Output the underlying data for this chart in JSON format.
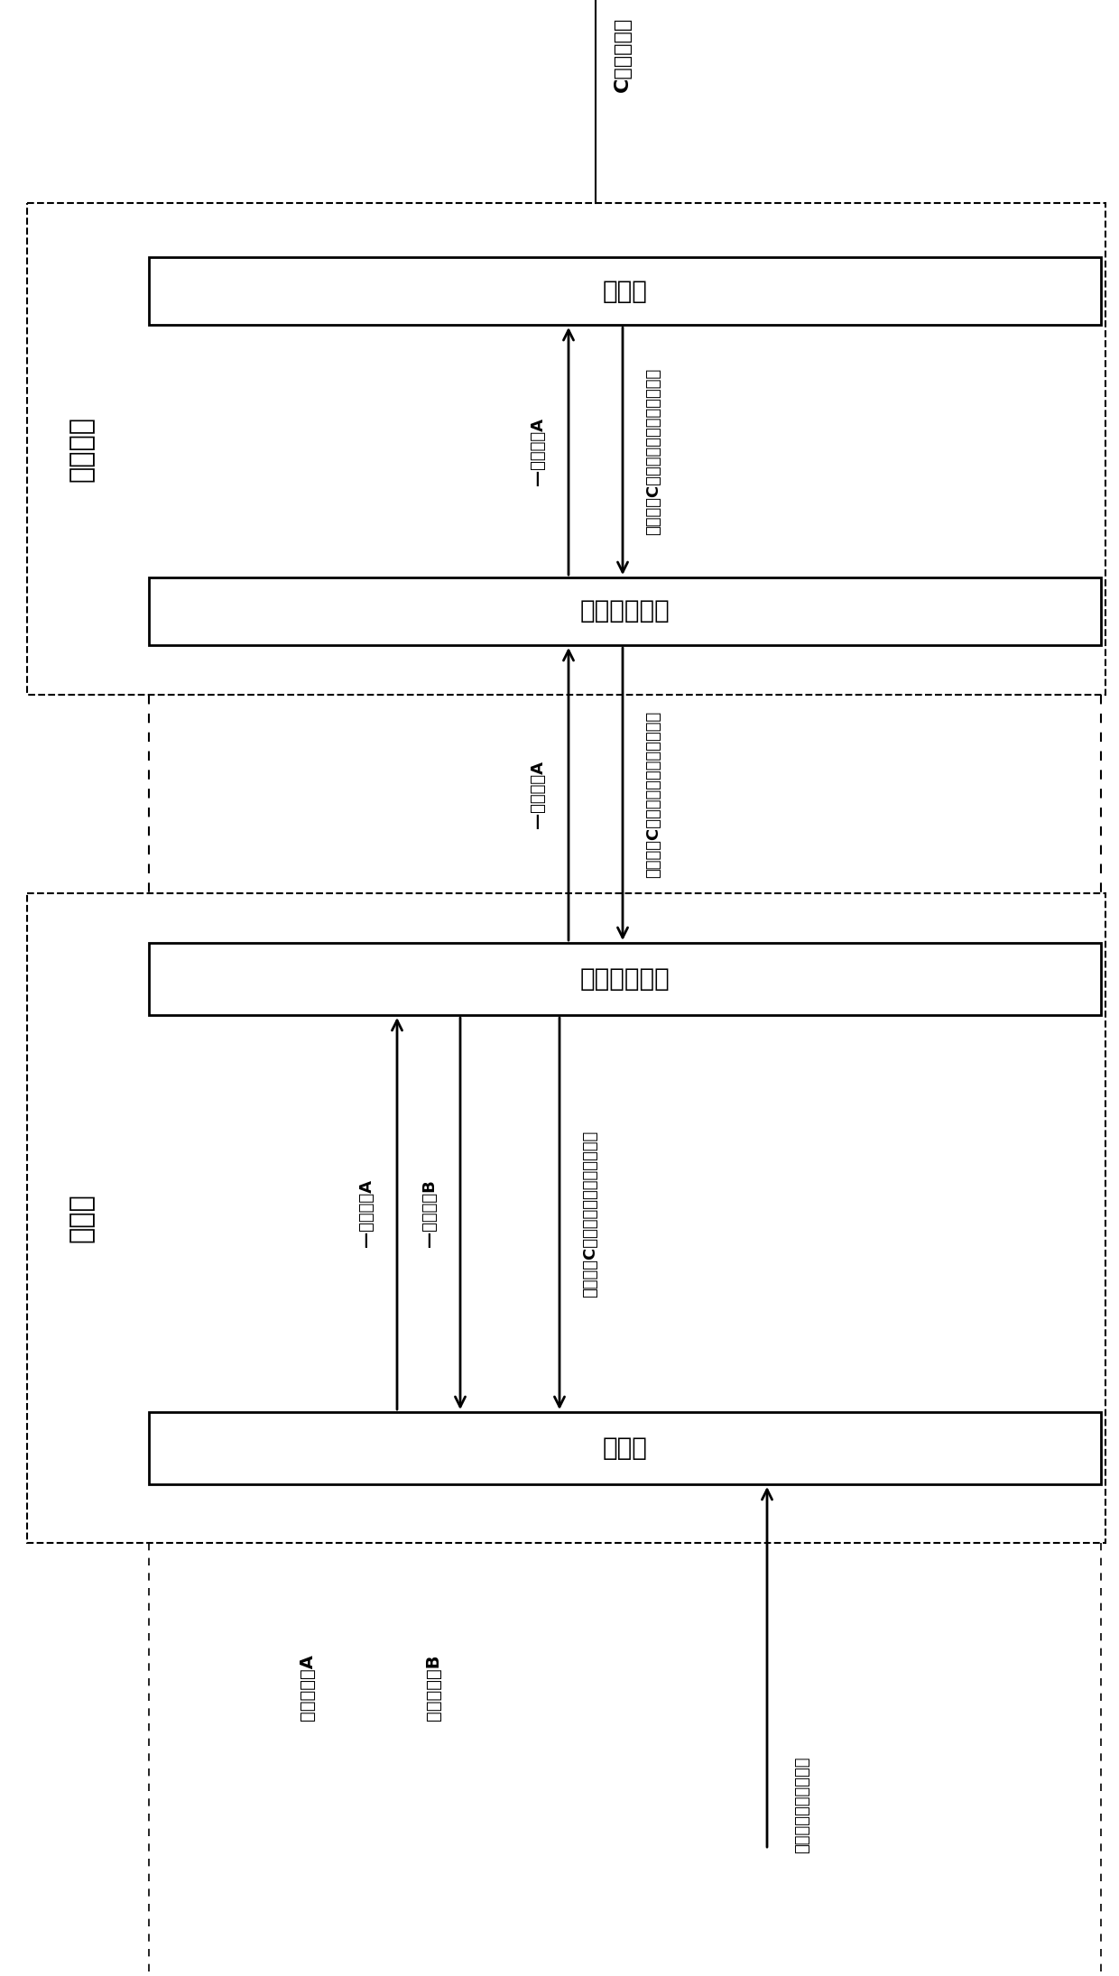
{
  "bg_color": "#ffffff",
  "fig_width": 12.4,
  "fig_height": 21.9,
  "slave_label": "从属节点",
  "master_label": "主节点",
  "box_slave_recv": "接收器",
  "box_slave_proc": "数据处理模块",
  "box_master_proc": "数据处理模块",
  "box_master_recv": "接收器",
  "label_C": "C：当前时间",
  "label_A": "当前时间：A",
  "label_B": "当前时间：B",
  "label_sync": "同步两测量数据的时间",
  "arr_up1_label": "—时间信息A",
  "arr_dn1_label": "时间信息C，测量数据及对应时间信息",
  "arr_up2_label": "—时间信息A",
  "arr_dn2_label": "时间信息C，测量数据及对应时间信息",
  "arr_up3_label": "—时间信息A",
  "arr_dn3_label": "—时间信息B",
  "arr_dn4_label": "时间信息C，测量数据及对应时间信息"
}
